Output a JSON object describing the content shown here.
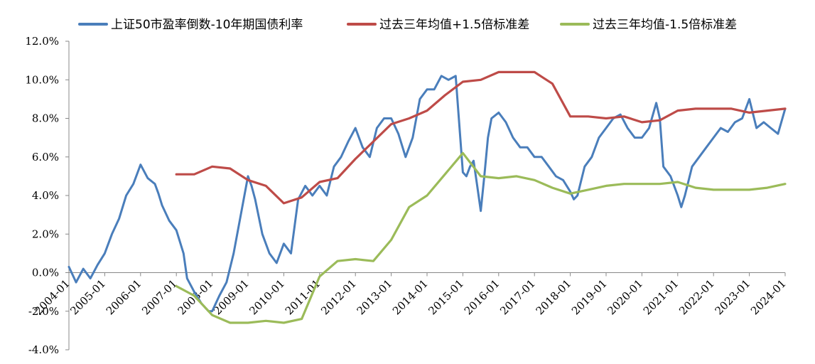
{
  "chart_data": {
    "type": "line",
    "title": "",
    "xlabel": "",
    "ylabel": "",
    "ylim": [
      -4.0,
      12.0
    ],
    "y_ticks": [
      "12.0%",
      "10.0%",
      "8.0%",
      "6.0%",
      "4.0%",
      "2.0%",
      "0.0%",
      "-2.0%",
      "-4.0%"
    ],
    "y_tick_values": [
      12,
      10,
      8,
      6,
      4,
      2,
      0,
      -2,
      -4
    ],
    "x_ticks": [
      "2004-01",
      "2005-01",
      "2006-01",
      "2007-01",
      "2008-01",
      "2009-01",
      "2010-01",
      "2011-01",
      "2012-01",
      "2013-01",
      "2014-01",
      "2015-01",
      "2016-01",
      "2017-01",
      "2018-01",
      "2019-01",
      "2020-01",
      "2021-01",
      "2022-01",
      "2023-01",
      "2024-01"
    ],
    "x_range": [
      2004.0,
      2024.0
    ],
    "legend_position": "top",
    "grid": false,
    "series": [
      {
        "name": "上证50市盈率倒数-10年期国债利率",
        "color": "#4a7ebb",
        "x": [
          2004.0,
          2004.2,
          2004.4,
          2004.6,
          2004.8,
          2005.0,
          2005.2,
          2005.4,
          2005.6,
          2005.8,
          2006.0,
          2006.2,
          2006.4,
          2006.5,
          2006.6,
          2006.8,
          2007.0,
          2007.2,
          2007.3,
          2007.5,
          2007.7,
          2007.9,
          2008.0,
          2008.2,
          2008.4,
          2008.6,
          2008.8,
          2009.0,
          2009.1,
          2009.2,
          2009.4,
          2009.6,
          2009.8,
          2010.0,
          2010.2,
          2010.4,
          2010.6,
          2010.8,
          2011.0,
          2011.2,
          2011.4,
          2011.6,
          2011.8,
          2012.0,
          2012.2,
          2012.4,
          2012.6,
          2012.8,
          2013.0,
          2013.2,
          2013.4,
          2013.6,
          2013.8,
          2014.0,
          2014.2,
          2014.4,
          2014.6,
          2014.8,
          2015.0,
          2015.1,
          2015.2,
          2015.3,
          2015.4,
          2015.5,
          2015.6,
          2015.7,
          2015.8,
          2016.0,
          2016.2,
          2016.4,
          2016.6,
          2016.8,
          2017.0,
          2017.2,
          2017.4,
          2017.6,
          2017.8,
          2018.0,
          2018.1,
          2018.2,
          2018.4,
          2018.6,
          2018.8,
          2019.0,
          2019.2,
          2019.4,
          2019.6,
          2019.8,
          2020.0,
          2020.2,
          2020.4,
          2020.5,
          2020.6,
          2020.8,
          2021.0,
          2021.1,
          2021.2,
          2021.4,
          2021.6,
          2021.8,
          2022.0,
          2022.2,
          2022.4,
          2022.6,
          2022.8,
          2023.0,
          2023.2,
          2023.4,
          2023.6,
          2023.8,
          2024.0
        ],
        "values": [
          0.3,
          -0.5,
          0.2,
          -0.3,
          0.4,
          1.0,
          2.0,
          2.8,
          4.0,
          4.6,
          5.6,
          4.9,
          4.6,
          4.1,
          3.5,
          2.7,
          2.2,
          1.0,
          -0.3,
          -1.0,
          -1.6,
          -2.0,
          -2.0,
          -1.2,
          -0.5,
          1.0,
          3.0,
          5.0,
          4.5,
          3.8,
          2.0,
          1.0,
          0.5,
          1.5,
          1.0,
          3.8,
          4.5,
          4.0,
          4.5,
          4.0,
          5.5,
          6.0,
          6.8,
          7.5,
          6.5,
          6.0,
          7.5,
          8.0,
          8.0,
          7.2,
          6.0,
          7.0,
          9.0,
          9.5,
          9.5,
          10.2,
          10.0,
          10.2,
          5.2,
          5.0,
          5.5,
          5.8,
          4.5,
          3.2,
          5.0,
          7.0,
          8.0,
          8.3,
          7.8,
          7.0,
          6.5,
          6.5,
          6.0,
          6.0,
          5.5,
          5.0,
          4.8,
          4.2,
          3.8,
          4.0,
          5.5,
          6.0,
          7.0,
          7.5,
          8.0,
          8.2,
          7.5,
          7.0,
          7.0,
          7.5,
          8.8,
          8.0,
          5.5,
          5.0,
          4.0,
          3.4,
          4.0,
          5.5,
          6.0,
          6.5,
          7.0,
          7.5,
          7.3,
          7.8,
          8.0,
          9.0,
          7.5,
          7.8,
          7.5,
          7.2,
          8.5
        ]
      },
      {
        "name": "过去三年均值+1.5倍标准差",
        "color": "#be4b48",
        "x": [
          2007.0,
          2007.5,
          2008.0,
          2008.5,
          2009.0,
          2009.5,
          2010.0,
          2010.5,
          2011.0,
          2011.5,
          2012.0,
          2012.5,
          2013.0,
          2013.5,
          2014.0,
          2014.5,
          2015.0,
          2015.5,
          2016.0,
          2016.5,
          2017.0,
          2017.5,
          2018.0,
          2018.5,
          2019.0,
          2019.5,
          2020.0,
          2020.5,
          2021.0,
          2021.5,
          2022.0,
          2022.5,
          2023.0,
          2023.5,
          2024.0
        ],
        "values": [
          5.1,
          5.1,
          5.5,
          5.4,
          4.8,
          4.5,
          3.6,
          3.9,
          4.7,
          4.9,
          5.9,
          6.8,
          7.7,
          8.0,
          8.4,
          9.2,
          9.9,
          10.0,
          10.4,
          10.4,
          10.4,
          9.8,
          8.1,
          8.1,
          8.0,
          8.1,
          7.8,
          7.9,
          8.4,
          8.5,
          8.5,
          8.5,
          8.3,
          8.4,
          8.5
        ]
      },
      {
        "name": "过去三年均值-1.5倍标准差",
        "color": "#9bbb59",
        "x": [
          2007.0,
          2007.5,
          2008.0,
          2008.5,
          2009.0,
          2009.5,
          2010.0,
          2010.5,
          2011.0,
          2011.5,
          2012.0,
          2012.5,
          2013.0,
          2013.5,
          2014.0,
          2014.5,
          2015.0,
          2015.5,
          2016.0,
          2016.5,
          2017.0,
          2017.5,
          2018.0,
          2018.5,
          2019.0,
          2019.5,
          2020.0,
          2020.5,
          2021.0,
          2021.5,
          2022.0,
          2022.5,
          2023.0,
          2023.5,
          2024.0
        ],
        "values": [
          -0.7,
          -1.2,
          -2.2,
          -2.6,
          -2.6,
          -2.5,
          -2.6,
          -2.4,
          -0.2,
          0.6,
          0.7,
          0.6,
          1.7,
          3.4,
          4.0,
          5.1,
          6.2,
          5.0,
          4.9,
          5.0,
          4.8,
          4.4,
          4.1,
          4.3,
          4.5,
          4.6,
          4.6,
          4.6,
          4.7,
          4.4,
          4.3,
          4.3,
          4.3,
          4.4,
          4.6
        ]
      }
    ]
  }
}
